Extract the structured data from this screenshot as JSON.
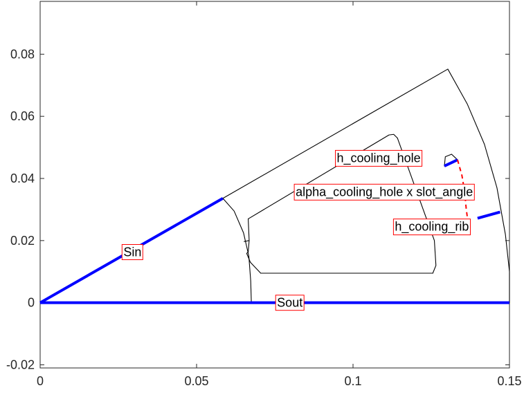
{
  "chart_data": {
    "type": "diagram",
    "title": "",
    "xlabel": "",
    "ylabel": "",
    "xlim": [
      0,
      0.15
    ],
    "ylim": [
      -0.021,
      0.097
    ],
    "x_ticks": [
      {
        "value": 0,
        "label": "0"
      },
      {
        "value": 0.05,
        "label": "0.05"
      },
      {
        "value": 0.1,
        "label": "0.1"
      },
      {
        "value": 0.15,
        "label": "0.15"
      }
    ],
    "y_ticks": [
      {
        "value": -0.02,
        "label": "-0.02"
      },
      {
        "value": 0,
        "label": "0"
      },
      {
        "value": 0.02,
        "label": "0.02"
      },
      {
        "value": 0.04,
        "label": "0.04"
      },
      {
        "value": 0.06,
        "label": "0.06"
      },
      {
        "value": 0.08,
        "label": "0.08"
      }
    ],
    "grid": false,
    "colors": {
      "outline": "#000000",
      "boundary": "#0000ff",
      "dimension": "#ff0000",
      "label_border": "#ff0000",
      "axes": "#262626"
    },
    "geometry": {
      "outline_segments": [
        {
          "name": "outer-arc",
          "points": [
            [
              0.1303,
              0.0752
            ],
            [
              0.1365,
              0.064
            ],
            [
              0.142,
              0.051
            ],
            [
              0.146,
              0.037
            ],
            [
              0.1487,
              0.022
            ],
            [
              0.15,
              0.01
            ],
            [
              0.15,
              0.0
            ]
          ]
        },
        {
          "name": "inner-radius-arc",
          "points": [
            [
              0.0584,
              0.0336
            ],
            [
              0.062,
              0.0295
            ],
            [
              0.065,
              0.0225
            ],
            [
              0.0667,
              0.015
            ],
            [
              0.0673,
              0.007
            ],
            [
              0.0675,
              0.0
            ]
          ]
        },
        {
          "name": "top-edge-upper",
          "points": [
            [
              0.0584,
              0.0336
            ],
            [
              0.1303,
              0.0752
            ]
          ]
        },
        {
          "name": "slot-opening",
          "points": [
            [
              0.0652,
              0.0197
            ],
            [
              0.0668,
              0.02
            ],
            [
              0.0665,
              0.0163
            ],
            [
              0.066,
              0.0159
            ],
            [
              0.0672,
              0.013
            ],
            [
              0.0705,
              0.0095
            ]
          ]
        },
        {
          "name": "slot-left-edge",
          "points": [
            [
              0.0665,
              0.027
            ],
            [
              0.0668,
              0.02
            ]
          ]
        },
        {
          "name": "slot-top",
          "points": [
            [
              0.0665,
              0.027
            ],
            [
              0.1115,
              0.054
            ],
            [
              0.113,
              0.0542
            ],
            [
              0.1142,
              0.053
            ]
          ]
        },
        {
          "name": "slot-right",
          "points": [
            [
              0.1142,
              0.053
            ],
            [
              0.126,
              0.02
            ],
            [
              0.1265,
              0.012
            ],
            [
              0.1255,
              0.0095
            ]
          ]
        },
        {
          "name": "slot-bottom",
          "points": [
            [
              0.0705,
              0.0095
            ],
            [
              0.1255,
              0.0095
            ]
          ]
        },
        {
          "name": "cooling-hole",
          "points": [
            [
              0.1292,
              0.044
            ],
            [
              0.1295,
              0.047
            ],
            [
              0.1315,
              0.0478
            ],
            [
              0.1334,
              0.046
            ]
          ]
        }
      ],
      "boundary_segments": [
        {
          "name": "Sin",
          "points": [
            [
              0,
              0
            ],
            [
              0.0584,
              0.0336
            ]
          ]
        },
        {
          "name": "Sout",
          "points": [
            [
              0,
              0
            ],
            [
              0.15,
              0
            ]
          ]
        },
        {
          "name": "h-cooling-hole-edge",
          "points": [
            [
              0.1292,
              0.044
            ],
            [
              0.1334,
              0.046
            ]
          ]
        },
        {
          "name": "h-cooling-rib-edge",
          "points": [
            [
              0.1398,
              0.0272
            ],
            [
              0.147,
              0.0292
            ]
          ]
        }
      ],
      "dimension_segments": [
        {
          "name": "alpha-cooling-hole-arc",
          "points": [
            [
              0.1334,
              0.046
            ],
            [
              0.1348,
              0.041
            ],
            [
              0.1357,
              0.0355
            ],
            [
              0.1362,
              0.03
            ],
            [
              0.1365,
              0.0278
            ]
          ]
        }
      ],
      "labels": [
        {
          "key": "Sin",
          "anchor": [
            0.0295,
            0.0163
          ]
        },
        {
          "key": "Sout",
          "anchor": [
            0.0798,
            0.0
          ]
        },
        {
          "key": "h_cooling_hole",
          "anchor": [
            0.1082,
            0.0466
          ]
        },
        {
          "key": "alpha_cooling_hole",
          "anchor": [
            0.11,
            0.0357
          ]
        },
        {
          "key": "h_cooling_rib",
          "anchor": [
            0.1252,
            0.0245
          ]
        }
      ]
    },
    "annotations": {
      "Sin": "Sin",
      "Sout": "Sout",
      "h_cooling_hole": "h_cooling_hole",
      "alpha_cooling_hole": "alpha_cooling_hole x slot_angle",
      "h_cooling_rib": "h_cooling_rib"
    }
  }
}
